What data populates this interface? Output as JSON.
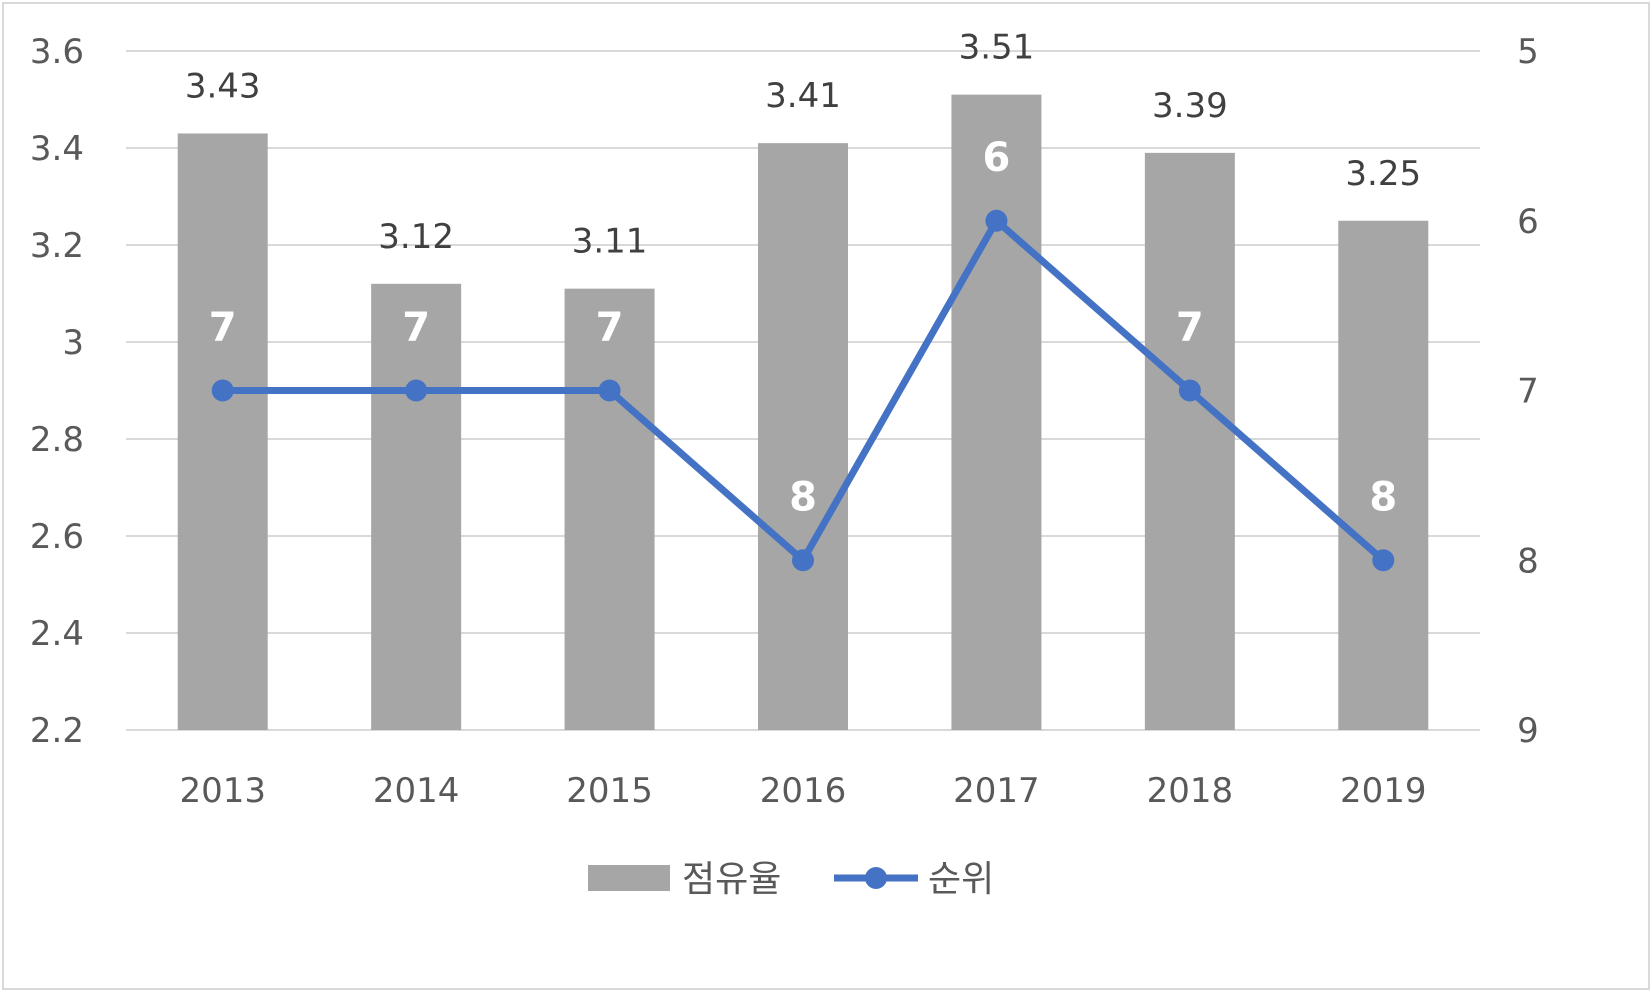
{
  "chart_data": {
    "type": "bar",
    "categories": [
      "2013",
      "2014",
      "2015",
      "2016",
      "2017",
      "2018",
      "2019"
    ],
    "series": [
      {
        "name": "점유율",
        "type": "bar",
        "axis": "left",
        "color": "#a6a6a6",
        "values": [
          3.43,
          3.12,
          3.11,
          3.41,
          3.51,
          3.39,
          3.25
        ],
        "labels": [
          "3.43",
          "3.12",
          "3.11",
          "3.41",
          "3.51",
          "3.39",
          "3.25"
        ]
      },
      {
        "name": "순위",
        "type": "line",
        "axis": "right",
        "color": "#4472c4",
        "values": [
          7,
          7,
          7,
          8,
          6,
          7,
          8
        ],
        "labels": [
          "7",
          "7",
          "7",
          "8",
          "6",
          "7",
          "8"
        ]
      }
    ],
    "y_left": {
      "min": 2.2,
      "max": 3.6,
      "ticks": [
        2.2,
        2.4,
        2.6,
        2.8,
        3.0,
        3.2,
        3.4,
        3.6
      ],
      "tick_labels": [
        "2.2",
        "2.4",
        "2.6",
        "2.8",
        "3",
        "3.2",
        "3.4",
        "3.6"
      ]
    },
    "y_right": {
      "min": 5,
      "max": 9,
      "reversed": true,
      "ticks": [
        5,
        6,
        7,
        8,
        9
      ],
      "tick_labels": [
        "5",
        "6",
        "7",
        "8",
        "9"
      ]
    },
    "grid": true,
    "gridline_color": "#d9d9d9",
    "legend_position": "bottom"
  }
}
